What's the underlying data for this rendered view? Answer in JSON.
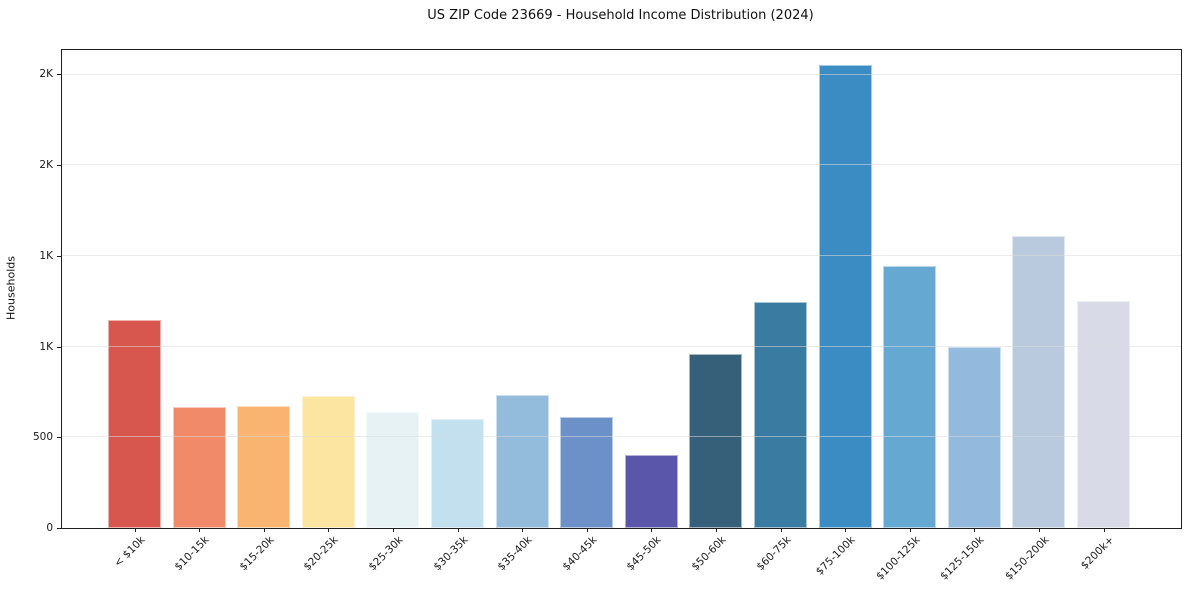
{
  "title": "US ZIP Code 23669 - Household Income Distribution (2024)",
  "colors": {
    "background": "#ffffff",
    "spine": "#1f1f1f",
    "grid": "#ebebeb",
    "text": "#1a1a1a"
  },
  "chart_data": {
    "type": "bar",
    "title": "US ZIP Code 23669 - Household Income Distribution (2024)",
    "xlabel": "",
    "ylabel": "Households",
    "categories": [
      "< $10k",
      "$10-15k",
      "$15-20k",
      "$20-25k",
      "$25-30k",
      "$30-35k",
      "$35-40k",
      "$40-45k",
      "$45-50k",
      "$50-60k",
      "$60-75k",
      "$75-100k",
      "$100-125k",
      "$125-150k",
      "$150-200k",
      "$200k+"
    ],
    "values": [
      1146,
      668,
      672,
      730,
      641,
      601,
      735,
      610,
      405,
      959,
      1247,
      2550,
      1446,
      1000,
      1609,
      1253
    ],
    "bar_colors": [
      "#d7574f",
      "#f18a68",
      "#f9b471",
      "#fce4a1",
      "#e7f2f5",
      "#c2e0ee",
      "#92bbdc",
      "#6b91c8",
      "#5a56a9",
      "#36607a",
      "#3a7ca1",
      "#3a8cc3",
      "#65a8d1",
      "#93badc",
      "#b9cade",
      "#d9dae8"
    ],
    "ylim": [
      0,
      2635
    ],
    "yticks": [
      {
        "value": 0,
        "label": "0"
      },
      {
        "value": 500,
        "label": "500"
      },
      {
        "value": 1000,
        "label": "1K"
      },
      {
        "value": 1500,
        "label": "1K"
      },
      {
        "value": 2000,
        "label": "2K"
      },
      {
        "value": 2500,
        "label": "2K"
      }
    ],
    "grid": "horizontal",
    "legend": "none"
  }
}
